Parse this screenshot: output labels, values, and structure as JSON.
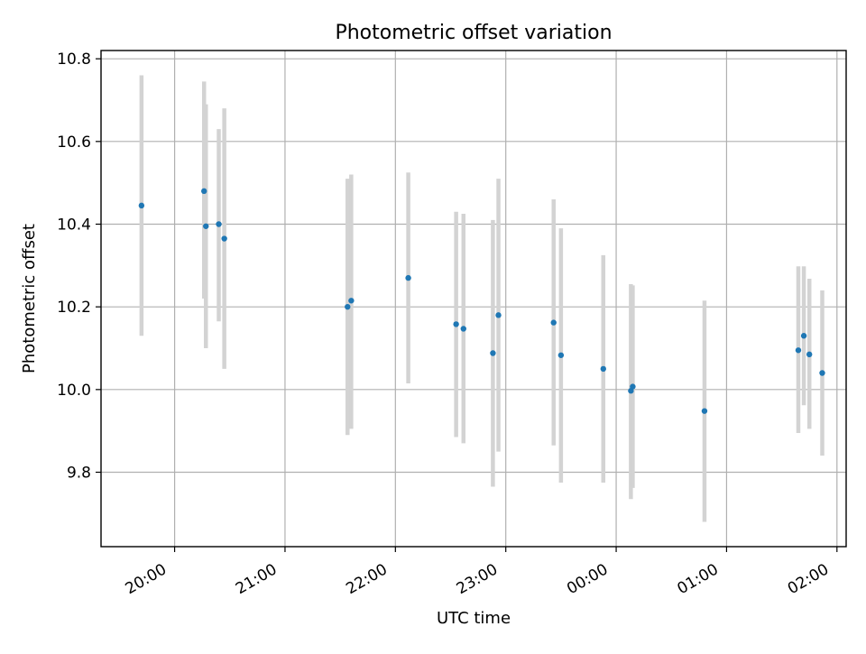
{
  "chart_data": {
    "type": "scatter",
    "title": "Photometric offset variation",
    "xlabel": "UTC time",
    "ylabel": "Photometric offset",
    "x_start": "2025-01-01T19:20",
    "x_end": "2025-01-02T02:05",
    "ylim": [
      9.62,
      10.82
    ],
    "grid": true,
    "x_ticks": [
      {
        "t": "2025-01-01T20:00",
        "label": "20:00"
      },
      {
        "t": "2025-01-01T21:00",
        "label": "21:00"
      },
      {
        "t": "2025-01-01T22:00",
        "label": "22:00"
      },
      {
        "t": "2025-01-01T23:00",
        "label": "23:00"
      },
      {
        "t": "2025-01-02T00:00",
        "label": "00:00"
      },
      {
        "t": "2025-01-02T01:00",
        "label": "01:00"
      },
      {
        "t": "2025-01-02T02:00",
        "label": "02:00"
      }
    ],
    "y_ticks": [
      {
        "v": 9.8,
        "label": "9.8"
      },
      {
        "v": 10.0,
        "label": "10.0"
      },
      {
        "v": 10.2,
        "label": "10.2"
      },
      {
        "v": 10.4,
        "label": "10.4"
      },
      {
        "v": 10.6,
        "label": "10.6"
      },
      {
        "v": 10.8,
        "label": "10.8"
      }
    ],
    "points": [
      {
        "t": "2025-01-01T19:42",
        "y": 10.445,
        "lo": 10.13,
        "hi": 10.76
      },
      {
        "t": "2025-01-01T20:16",
        "y": 10.48,
        "lo": 10.22,
        "hi": 10.745
      },
      {
        "t": "2025-01-01T20:17",
        "y": 10.395,
        "lo": 10.1,
        "hi": 10.69
      },
      {
        "t": "2025-01-01T20:24",
        "y": 10.4,
        "lo": 10.165,
        "hi": 10.63
      },
      {
        "t": "2025-01-01T20:27",
        "y": 10.365,
        "lo": 10.05,
        "hi": 10.68
      },
      {
        "t": "2025-01-01T21:34",
        "y": 10.2,
        "lo": 9.89,
        "hi": 10.51
      },
      {
        "t": "2025-01-01T21:36",
        "y": 10.215,
        "lo": 9.905,
        "hi": 10.52
      },
      {
        "t": "2025-01-01T22:07",
        "y": 10.27,
        "lo": 10.015,
        "hi": 10.525
      },
      {
        "t": "2025-01-01T22:33",
        "y": 10.158,
        "lo": 9.885,
        "hi": 10.43
      },
      {
        "t": "2025-01-01T22:37",
        "y": 10.147,
        "lo": 9.87,
        "hi": 10.425
      },
      {
        "t": "2025-01-01T22:53",
        "y": 10.088,
        "lo": 9.765,
        "hi": 10.41
      },
      {
        "t": "2025-01-01T22:56",
        "y": 10.18,
        "lo": 9.85,
        "hi": 10.51
      },
      {
        "t": "2025-01-01T23:26",
        "y": 10.162,
        "lo": 9.865,
        "hi": 10.46
      },
      {
        "t": "2025-01-01T23:30",
        "y": 10.083,
        "lo": 9.775,
        "hi": 10.39
      },
      {
        "t": "2025-01-01T23:53",
        "y": 10.05,
        "lo": 9.775,
        "hi": 10.325
      },
      {
        "t": "2025-01-02T00:08",
        "y": 9.997,
        "lo": 9.735,
        "hi": 10.255
      },
      {
        "t": "2025-01-02T00:09",
        "y": 10.007,
        "lo": 9.762,
        "hi": 10.252
      },
      {
        "t": "2025-01-02T00:48",
        "y": 9.948,
        "lo": 9.68,
        "hi": 10.215
      },
      {
        "t": "2025-01-02T01:39",
        "y": 10.095,
        "lo": 9.895,
        "hi": 10.298
      },
      {
        "t": "2025-01-02T01:42",
        "y": 10.13,
        "lo": 9.962,
        "hi": 10.298
      },
      {
        "t": "2025-01-02T01:45",
        "y": 10.085,
        "lo": 9.905,
        "hi": 10.268
      },
      {
        "t": "2025-01-02T01:52",
        "y": 10.04,
        "lo": 9.84,
        "hi": 10.24
      }
    ],
    "colors": {
      "marker": "#1f77b4",
      "errorbar": "#d3d3d3",
      "grid": "#b0b0b0",
      "frame": "#000000"
    }
  }
}
